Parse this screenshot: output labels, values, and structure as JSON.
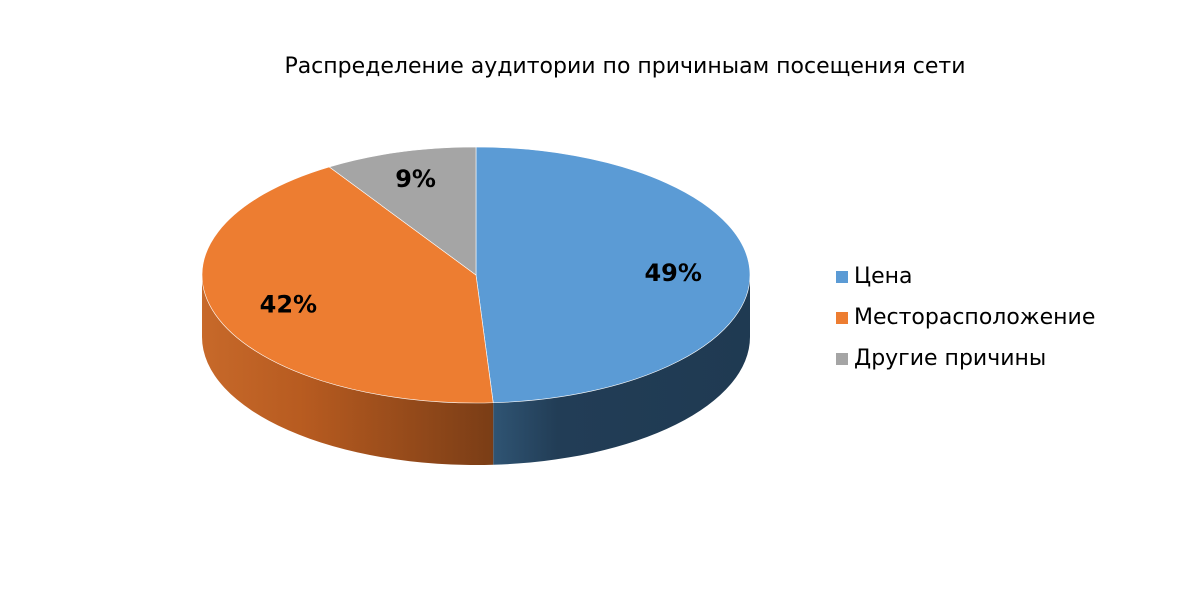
{
  "chart_data": {
    "type": "pie",
    "title": "Распределение аудитории по причиныам посещения сети",
    "categories": [
      "Цена",
      "Месторасположение",
      "Другие причины"
    ],
    "values": [
      49,
      42,
      9
    ],
    "data_labels": [
      "49%",
      "42%",
      "9%"
    ],
    "colors": [
      "#5B9BD5",
      "#ED7D31",
      "#A5A5A5"
    ],
    "style": "3d",
    "legend_position": "right"
  }
}
